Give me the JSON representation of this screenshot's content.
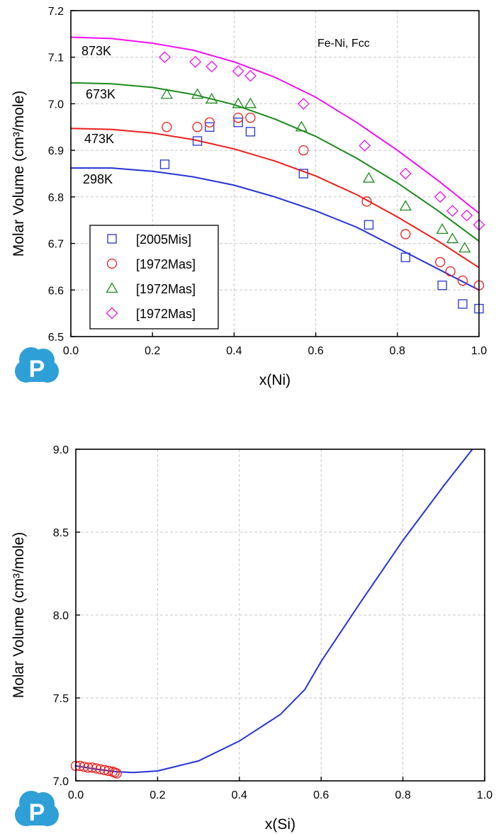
{
  "colors": {
    "blue": "#2633d6",
    "red": "#ee1c1c",
    "green": "#1c8a1c",
    "magenta": "#ef10ef",
    "grid": "#c8c8c8",
    "logo": "#2f9fd8"
  },
  "logo": {
    "letter": "P",
    "icon": "cloud-p-logo"
  },
  "chart_data": [
    {
      "type": "scatter",
      "annotation": "Fe-Ni, Fcc",
      "xlabel": "x(Ni)",
      "ylabel": "Molar Volume (cm³/mole)",
      "xlim": [
        0,
        1.0
      ],
      "ylim": [
        6.5,
        7.2
      ],
      "xticks": [
        0.0,
        0.2,
        0.4,
        0.6,
        0.8,
        1.0
      ],
      "yticks": [
        6.5,
        6.6,
        6.7,
        6.8,
        6.9,
        7.0,
        7.1,
        7.2
      ],
      "grid": true,
      "legend_position": "bottom-left",
      "series": [
        {
          "name": "[2005Mis]",
          "color": "blue",
          "marker": "square",
          "line_label": "298K",
          "points": [
            [
              0.23,
              6.87
            ],
            [
              0.31,
              6.92
            ],
            [
              0.34,
              6.95
            ],
            [
              0.41,
              6.96
            ],
            [
              0.44,
              6.94
            ],
            [
              0.57,
              6.85
            ],
            [
              0.73,
              6.74
            ],
            [
              0.82,
              6.67
            ],
            [
              0.91,
              6.61
            ],
            [
              0.96,
              6.57
            ],
            [
              1.0,
              6.56
            ]
          ],
          "line": [
            [
              0.0,
              6.862
            ],
            [
              0.1,
              6.862
            ],
            [
              0.2,
              6.855
            ],
            [
              0.3,
              6.843
            ],
            [
              0.4,
              6.825
            ],
            [
              0.5,
              6.8
            ],
            [
              0.6,
              6.77
            ],
            [
              0.7,
              6.735
            ],
            [
              0.8,
              6.69
            ],
            [
              0.9,
              6.645
            ],
            [
              1.0,
              6.6
            ]
          ]
        },
        {
          "name": "[1972Mas]",
          "color": "red",
          "marker": "circle",
          "line_label": "473K",
          "points": [
            [
              0.235,
              6.95
            ],
            [
              0.31,
              6.95
            ],
            [
              0.34,
              6.96
            ],
            [
              0.41,
              6.97
            ],
            [
              0.44,
              6.97
            ],
            [
              0.57,
              6.9
            ],
            [
              0.725,
              6.79
            ],
            [
              0.82,
              6.72
            ],
            [
              0.905,
              6.66
            ],
            [
              0.93,
              6.64
            ],
            [
              0.96,
              6.62
            ],
            [
              1.0,
              6.61
            ]
          ],
          "line": [
            [
              0.0,
              6.947
            ],
            [
              0.1,
              6.945
            ],
            [
              0.2,
              6.937
            ],
            [
              0.3,
              6.923
            ],
            [
              0.4,
              6.903
            ],
            [
              0.5,
              6.877
            ],
            [
              0.6,
              6.845
            ],
            [
              0.7,
              6.805
            ],
            [
              0.8,
              6.757
            ],
            [
              0.9,
              6.705
            ],
            [
              1.0,
              6.648
            ]
          ]
        },
        {
          "name": "[1972Mas]",
          "color": "green",
          "marker": "triangle",
          "line_label": "673K",
          "points": [
            [
              0.235,
              7.02
            ],
            [
              0.31,
              7.02
            ],
            [
              0.345,
              7.01
            ],
            [
              0.41,
              7.0
            ],
            [
              0.44,
              7.0
            ],
            [
              0.565,
              6.95
            ],
            [
              0.73,
              6.84
            ],
            [
              0.82,
              6.78
            ],
            [
              0.91,
              6.73
            ],
            [
              0.935,
              6.71
            ],
            [
              0.965,
              6.69
            ]
          ],
          "line": [
            [
              0.0,
              7.045
            ],
            [
              0.1,
              7.043
            ],
            [
              0.2,
              7.035
            ],
            [
              0.3,
              7.02
            ],
            [
              0.4,
              6.998
            ],
            [
              0.5,
              6.967
            ],
            [
              0.6,
              6.93
            ],
            [
              0.7,
              6.883
            ],
            [
              0.8,
              6.83
            ],
            [
              0.9,
              6.77
            ],
            [
              1.0,
              6.705
            ]
          ]
        },
        {
          "name": "[1972Mas]",
          "color": "magenta",
          "marker": "diamond",
          "line_label": "873K",
          "points": [
            [
              0.23,
              7.1
            ],
            [
              0.305,
              7.09
            ],
            [
              0.345,
              7.08
            ],
            [
              0.41,
              7.07
            ],
            [
              0.44,
              7.06
            ],
            [
              0.57,
              7.0
            ],
            [
              0.72,
              6.91
            ],
            [
              0.82,
              6.85
            ],
            [
              0.905,
              6.8
            ],
            [
              0.935,
              6.77
            ],
            [
              0.97,
              6.76
            ],
            [
              1.0,
              6.74
            ]
          ],
          "line": [
            [
              0.0,
              7.143
            ],
            [
              0.1,
              7.14
            ],
            [
              0.2,
              7.13
            ],
            [
              0.3,
              7.115
            ],
            [
              0.4,
              7.09
            ],
            [
              0.5,
              7.057
            ],
            [
              0.6,
              7.014
            ],
            [
              0.7,
              6.96
            ],
            [
              0.8,
              6.9
            ],
            [
              0.9,
              6.835
            ],
            [
              1.0,
              6.765
            ]
          ]
        }
      ]
    },
    {
      "type": "line",
      "xlabel": "x(Si)",
      "ylabel": "Molar Volume (cm³/mole)",
      "xlim": [
        0,
        1.0
      ],
      "ylim": [
        7.0,
        9.0
      ],
      "xticks": [
        0.0,
        0.2,
        0.4,
        0.6,
        0.8,
        1.0
      ],
      "yticks": [
        7.0,
        7.5,
        8.0,
        8.5,
        9.0
      ],
      "grid": true,
      "series": [
        {
          "color": "blue",
          "marker": "none",
          "line": [
            [
              0.0,
              7.09
            ],
            [
              0.05,
              7.07
            ],
            [
              0.1,
              7.055
            ],
            [
              0.14,
              7.05
            ],
            [
              0.2,
              7.06
            ],
            [
              0.3,
              7.12
            ],
            [
              0.4,
              7.24
            ],
            [
              0.5,
              7.4
            ],
            [
              0.56,
              7.55
            ],
            [
              0.6,
              7.72
            ],
            [
              0.7,
              8.09
            ],
            [
              0.8,
              8.45
            ],
            [
              0.9,
              8.78
            ],
            [
              0.97,
              9.0
            ]
          ]
        },
        {
          "color": "red",
          "marker": "circle",
          "points": [
            [
              0.0,
              7.09
            ],
            [
              0.01,
              7.09
            ],
            [
              0.02,
              7.085
            ],
            [
              0.03,
              7.08
            ],
            [
              0.04,
              7.08
            ],
            [
              0.05,
              7.075
            ],
            [
              0.06,
              7.07
            ],
            [
              0.07,
              7.065
            ],
            [
              0.08,
              7.06
            ],
            [
              0.09,
              7.055
            ],
            [
              0.095,
              7.05
            ],
            [
              0.1,
              7.045
            ]
          ]
        }
      ]
    }
  ]
}
